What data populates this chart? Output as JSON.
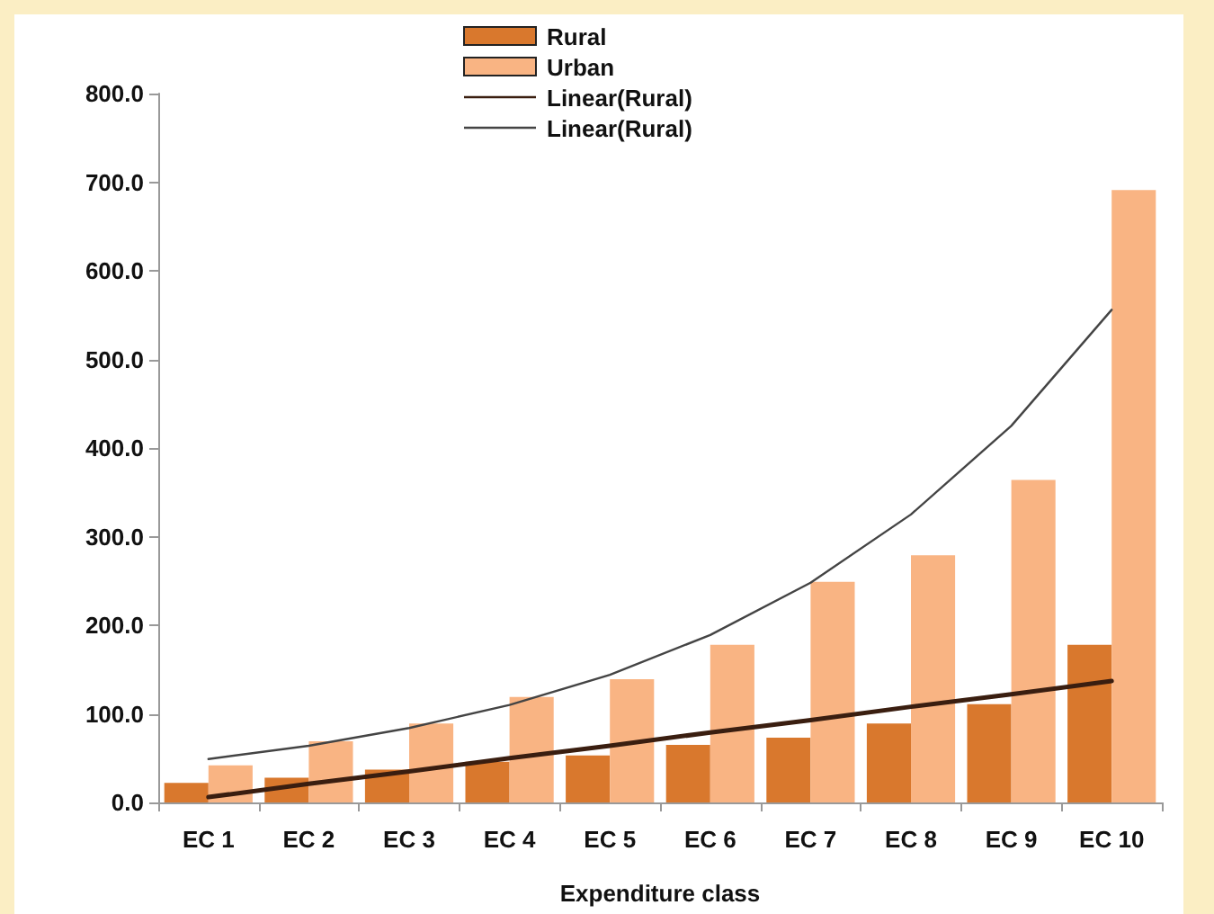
{
  "chart_data": {
    "type": "bar",
    "xlabel": "Expenditure class",
    "categories": [
      "EC 1",
      "EC 2",
      "EC 3",
      "EC 4",
      "EC 5",
      "EC 6",
      "EC 7",
      "EC 8",
      "EC 9",
      "EC 10"
    ],
    "series": [
      {
        "name": "Rural",
        "color": "#d9782d",
        "values": [
          22,
          28,
          37,
          46,
          53,
          65,
          73,
          89,
          111,
          178
        ]
      },
      {
        "name": "Urban",
        "color": "#f9b483",
        "values": [
          42,
          69,
          89,
          119,
          139,
          178,
          249,
          279,
          364,
          691
        ]
      },
      {
        "name": "Linear(Rural)",
        "type": "line",
        "color": "#3a1e10",
        "values": [
          6,
          21,
          35,
          50,
          64,
          79,
          93,
          108,
          122,
          137
        ]
      },
      {
        "name": "Linear(Rural)",
        "type": "line",
        "color": "#444444",
        "values": [
          49,
          64,
          84,
          110,
          144,
          189,
          248,
          325,
          425,
          556
        ]
      }
    ],
    "ylim": [
      0,
      800
    ],
    "yticks": [
      {
        "value": 0,
        "label": "0.0"
      },
      {
        "value": 100,
        "label": "100.0"
      },
      {
        "value": 200,
        "label": "200.0"
      },
      {
        "value": 300,
        "label": "300.0"
      },
      {
        "value": 400,
        "label": "400.0"
      },
      {
        "value": 500,
        "label": "500.0"
      },
      {
        "value": 600,
        "label": "600.0"
      },
      {
        "value": 700,
        "label": "700.0"
      },
      {
        "value": 800,
        "label": "800.0"
      }
    ],
    "grid": false,
    "legend": "top",
    "marker": "none"
  }
}
